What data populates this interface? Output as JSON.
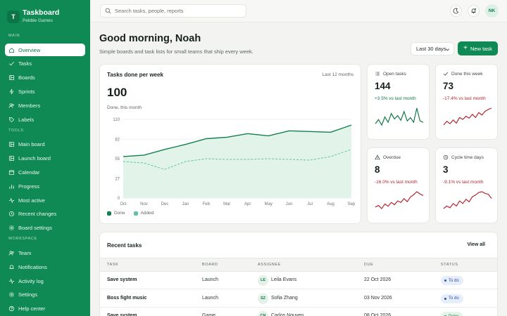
{
  "app": {
    "logo_letter": "T",
    "name": "Taskboard",
    "subtitle": "Pebble Games"
  },
  "sidebar": {
    "sections": [
      {
        "label": "MAIN",
        "items": [
          {
            "label": "Overview",
            "icon": "home-icon",
            "active": true
          },
          {
            "label": "Tasks",
            "icon": "check-icon"
          },
          {
            "label": "Boards",
            "icon": "board-icon"
          },
          {
            "label": "Sprints",
            "icon": "bolt-icon"
          },
          {
            "label": "Members",
            "icon": "users-icon"
          },
          {
            "label": "Labels",
            "icon": "tag-icon"
          }
        ]
      },
      {
        "label": "TOOLS",
        "items": [
          {
            "label": "Main board",
            "icon": "board-icon"
          },
          {
            "label": "Launch board",
            "icon": "board-icon"
          },
          {
            "label": "Calendar",
            "icon": "calendar-icon"
          },
          {
            "label": "Progress",
            "icon": "bar-chart-icon"
          },
          {
            "label": "Most active",
            "icon": "activity-icon"
          },
          {
            "label": "Recent changes",
            "icon": "history-icon"
          },
          {
            "label": "Board settings",
            "icon": "gear-icon"
          }
        ]
      },
      {
        "label": "WORKSPACE",
        "items": [
          {
            "label": "Team",
            "icon": "users-icon"
          },
          {
            "label": "Notifications",
            "icon": "bell-icon"
          },
          {
            "label": "Activity log",
            "icon": "activity-icon"
          },
          {
            "label": "Settings",
            "icon": "gear-icon"
          },
          {
            "label": "Help center",
            "icon": "help-icon"
          }
        ]
      }
    ]
  },
  "topbar": {
    "search_placeholder": "Search tasks, people, reports",
    "avatar_initials": "NK"
  },
  "header": {
    "greeting": "Good morning, Noah",
    "subtitle": "Simple boards and task lists for small teams that ship every week.",
    "range_label": "Last 30 days",
    "new_task_label": "New task"
  },
  "chart_card": {
    "title": "Tasks done per week",
    "range": "Last 12 months",
    "big_value": "100",
    "big_caption": "Done, this month",
    "legend": [
      "Done",
      "Added"
    ]
  },
  "chart_data": {
    "type": "area",
    "title": "Tasks done per week",
    "categories": [
      "Oct",
      "Nov",
      "Dec",
      "Jan",
      "Feb",
      "Mar",
      "Apr",
      "May",
      "Jun",
      "Jul",
      "Aug",
      "Sep"
    ],
    "ylim": [
      0,
      110
    ],
    "yticks": [
      0,
      27,
      55,
      82,
      110
    ],
    "series": [
      {
        "name": "Done",
        "values": [
          58,
          60,
          68,
          75,
          83,
          85,
          90,
          87,
          94,
          93,
          92,
          102
        ]
      },
      {
        "name": "Added",
        "values": [
          51,
          49,
          40,
          51,
          55,
          54,
          54,
          55,
          54,
          53,
          58,
          68
        ]
      }
    ],
    "grid": true,
    "legend": "bottom-left"
  },
  "stats": [
    {
      "label": "Open tasks",
      "icon": "list-icon",
      "value": "144",
      "delta": "+3.5% vs last month",
      "trend": "up",
      "spark": [
        40,
        46,
        38,
        50,
        42,
        55,
        47,
        52,
        45,
        58,
        44,
        49,
        42,
        63,
        44,
        42
      ]
    },
    {
      "label": "Done this week",
      "icon": "check-icon",
      "value": "73",
      "delta": "-17.4% vs last month",
      "trend": "down",
      "spark": [
        38,
        44,
        40,
        46,
        41,
        50,
        47,
        52,
        49,
        55,
        50,
        58,
        54,
        60,
        63,
        65
      ]
    },
    {
      "label": "Overdue",
      "icon": "warning-icon",
      "value": "8",
      "delta": "-16.0% vs last month",
      "trend": "down",
      "spark": [
        40,
        42,
        38,
        44,
        41,
        46,
        43,
        48,
        46,
        51,
        47,
        53,
        56,
        60,
        57,
        55
      ]
    },
    {
      "label": "Cycle time days",
      "icon": "clock-icon",
      "value": "3",
      "delta": "-9.1% vs last month",
      "trend": "down",
      "spark": [
        40,
        43,
        41,
        46,
        43,
        49,
        46,
        51,
        48,
        54,
        56,
        59,
        60,
        58,
        57,
        52
      ]
    }
  ],
  "colors": {
    "brand": "#0f8a55",
    "done_line": "#13804d",
    "added_line": "#5cc79a",
    "up": "#137a48",
    "down": "#b3262d"
  },
  "recent": {
    "title": "Recent tasks",
    "view_all": "View all",
    "columns": [
      "TASK",
      "BOARD",
      "ASSIGNEE",
      "DUE",
      "STATUS"
    ],
    "rows": [
      {
        "task": "Save system",
        "board": "Launch",
        "initials": "LE",
        "assignee": "Leila Evans",
        "due": "22 Oct 2026",
        "status": "To do"
      },
      {
        "task": "Boss fight music",
        "board": "Launch",
        "initials": "SZ",
        "assignee": "Sofia Zhang",
        "due": "03 Nov 2026",
        "status": "To do"
      },
      {
        "task": "Save system",
        "board": "Game",
        "initials": "CN",
        "assignee": "Carlos Nguyen",
        "due": "08 Oct 2026",
        "status": "Done"
      }
    ]
  }
}
